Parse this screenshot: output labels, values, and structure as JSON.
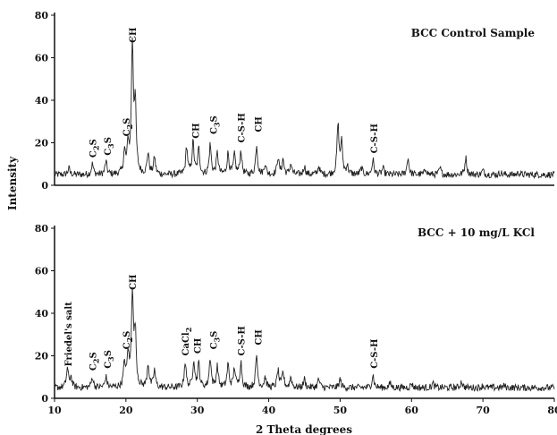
{
  "chart_data": {
    "type": "line",
    "xlabel": "2 Theta degrees",
    "ylabel": "Intensity",
    "xlim": [
      10,
      80
    ],
    "xticks": [
      10,
      20,
      30,
      40,
      50,
      60,
      70,
      80
    ],
    "panels": [
      {
        "title": "BCC Control Sample",
        "ylim": [
          0,
          80
        ],
        "yticks": [
          0,
          20,
          40,
          60,
          80
        ],
        "baseline": 5,
        "peaks": [
          {
            "x": 12.0,
            "y": 8
          },
          {
            "x": 15.3,
            "y": 10
          },
          {
            "x": 17.2,
            "y": 11
          },
          {
            "x": 19.8,
            "y": 15
          },
          {
            "x": 20.3,
            "y": 18
          },
          {
            "x": 20.9,
            "y": 65
          },
          {
            "x": 21.3,
            "y": 36
          },
          {
            "x": 23.1,
            "y": 15
          },
          {
            "x": 24.0,
            "y": 13
          },
          {
            "x": 28.5,
            "y": 18
          },
          {
            "x": 29.4,
            "y": 20
          },
          {
            "x": 30.2,
            "y": 17
          },
          {
            "x": 31.8,
            "y": 19
          },
          {
            "x": 32.8,
            "y": 15
          },
          {
            "x": 34.3,
            "y": 15
          },
          {
            "x": 35.2,
            "y": 14
          },
          {
            "x": 36.1,
            "y": 16
          },
          {
            "x": 38.3,
            "y": 19
          },
          {
            "x": 39.5,
            "y": 10
          },
          {
            "x": 41.3,
            "y": 13
          },
          {
            "x": 42.0,
            "y": 12
          },
          {
            "x": 43.1,
            "y": 10
          },
          {
            "x": 45.0,
            "y": 9
          },
          {
            "x": 47.0,
            "y": 9
          },
          {
            "x": 49.7,
            "y": 28
          },
          {
            "x": 50.2,
            "y": 20
          },
          {
            "x": 51.0,
            "y": 9
          },
          {
            "x": 53.0,
            "y": 8
          },
          {
            "x": 54.6,
            "y": 12
          },
          {
            "x": 56.0,
            "y": 8
          },
          {
            "x": 59.5,
            "y": 13
          },
          {
            "x": 62.0,
            "y": 8
          },
          {
            "x": 64.0,
            "y": 8
          },
          {
            "x": 67.6,
            "y": 13
          },
          {
            "x": 70.0,
            "y": 7
          },
          {
            "x": 72.5,
            "y": 6
          },
          {
            "x": 75.0,
            "y": 6
          },
          {
            "x": 78.0,
            "y": 5
          }
        ],
        "annotations": [
          {
            "text": "C2S",
            "x": 15.3,
            "y": 13
          },
          {
            "text": "C3S",
            "x": 17.4,
            "y": 14
          },
          {
            "text": "C2S",
            "x": 20.0,
            "y": 23
          },
          {
            "text": "CH",
            "x": 20.9,
            "y": 67
          },
          {
            "text": "CH",
            "x": 29.7,
            "y": 22
          },
          {
            "text": "C3S",
            "x": 32.2,
            "y": 24
          },
          {
            "text": "C-S-H",
            "x": 36.1,
            "y": 20
          },
          {
            "text": "CH",
            "x": 38.5,
            "y": 25
          },
          {
            "text": "C-S-H",
            "x": 54.7,
            "y": 15
          }
        ]
      },
      {
        "title": "BCC + 10 mg/L KCl",
        "ylim": [
          0,
          80
        ],
        "yticks": [
          0,
          20,
          40,
          60,
          80
        ],
        "baseline": 5,
        "peaks": [
          {
            "x": 11.8,
            "y": 14
          },
          {
            "x": 12.3,
            "y": 10
          },
          {
            "x": 15.3,
            "y": 10
          },
          {
            "x": 17.2,
            "y": 10
          },
          {
            "x": 19.8,
            "y": 16
          },
          {
            "x": 20.3,
            "y": 20
          },
          {
            "x": 20.9,
            "y": 49
          },
          {
            "x": 21.3,
            "y": 30
          },
          {
            "x": 23.1,
            "y": 16
          },
          {
            "x": 24.0,
            "y": 13
          },
          {
            "x": 28.3,
            "y": 17
          },
          {
            "x": 29.5,
            "y": 18
          },
          {
            "x": 30.2,
            "y": 16
          },
          {
            "x": 31.8,
            "y": 19
          },
          {
            "x": 32.8,
            "y": 15
          },
          {
            "x": 34.3,
            "y": 16
          },
          {
            "x": 35.2,
            "y": 14
          },
          {
            "x": 36.1,
            "y": 17
          },
          {
            "x": 38.3,
            "y": 20
          },
          {
            "x": 39.5,
            "y": 10
          },
          {
            "x": 41.3,
            "y": 13
          },
          {
            "x": 42.0,
            "y": 12
          },
          {
            "x": 43.1,
            "y": 10
          },
          {
            "x": 45.0,
            "y": 9
          },
          {
            "x": 47.0,
            "y": 9
          },
          {
            "x": 50.0,
            "y": 9
          },
          {
            "x": 54.6,
            "y": 11
          },
          {
            "x": 57.0,
            "y": 7
          },
          {
            "x": 60.0,
            "y": 7
          },
          {
            "x": 63.0,
            "y": 7
          },
          {
            "x": 67.0,
            "y": 8
          },
          {
            "x": 70.0,
            "y": 6
          },
          {
            "x": 73.0,
            "y": 6
          },
          {
            "x": 77.0,
            "y": 5
          }
        ],
        "annotations": [
          {
            "text": "Friedel's salt",
            "x": 11.9,
            "y": 15
          },
          {
            "text": "C2S",
            "x": 15.3,
            "y": 13
          },
          {
            "text": "C3S",
            "x": 17.4,
            "y": 14
          },
          {
            "text": "C2S",
            "x": 20.0,
            "y": 23
          },
          {
            "text": "CH",
            "x": 20.9,
            "y": 51
          },
          {
            "text": "CaCl2",
            "x": 28.3,
            "y": 20
          },
          {
            "text": "CH",
            "x": 30.0,
            "y": 21
          },
          {
            "text": "C3S",
            "x": 32.2,
            "y": 23
          },
          {
            "text": "C-S-H",
            "x": 36.1,
            "y": 20
          },
          {
            "text": "CH",
            "x": 38.5,
            "y": 25
          },
          {
            "text": "C-S-H",
            "x": 54.7,
            "y": 14
          }
        ]
      }
    ]
  }
}
